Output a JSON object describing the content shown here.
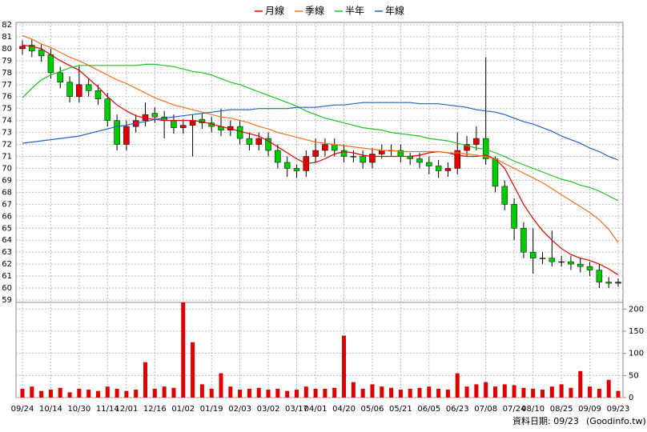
{
  "chart_data": [
    {
      "type": "candlestick",
      "series": [
        {
          "name": "月線",
          "color": "#e00000",
          "values": [
            80.3,
            80.2,
            80.0,
            79.5,
            79.0,
            78.6,
            78.2,
            77.5,
            76.8,
            76.0,
            75.3,
            74.8,
            74.4,
            74.2,
            74.1,
            74.0,
            74.0,
            74.0,
            74.0,
            73.9,
            73.7,
            73.5,
            73.3,
            73.1,
            72.9,
            72.7,
            72.3,
            71.8,
            71.3,
            70.8,
            70.4,
            70.5,
            70.8,
            71.2,
            71.4,
            71.3,
            71.1,
            71.0,
            71.0,
            71.0,
            71.0,
            71.0,
            71.1,
            71.3,
            71.4,
            71.3,
            71.1,
            71.0,
            71.0,
            71.1,
            70.8,
            70.0,
            68.5,
            67.0,
            65.8,
            64.8,
            64.0,
            63.3,
            62.8,
            62.5,
            62.3,
            62.0,
            61.6,
            61.1
          ]
        },
        {
          "name": "季線",
          "color": "#f07020",
          "values": [
            81.1,
            80.8,
            80.4,
            80.1,
            79.7,
            79.3,
            79.0,
            78.6,
            78.2,
            77.8,
            77.4,
            77.1,
            76.7,
            76.3,
            75.9,
            75.6,
            75.3,
            75.1,
            74.9,
            74.7,
            74.5,
            74.3,
            74.2,
            74.0,
            73.8,
            73.5,
            73.3,
            73.0,
            72.8,
            72.6,
            72.4,
            72.2,
            72.1,
            72.0,
            71.9,
            71.8,
            71.7,
            71.6,
            71.5,
            71.5,
            71.4,
            71.4,
            71.4,
            71.4,
            71.4,
            71.3,
            71.3,
            71.2,
            71.1,
            71.0,
            70.8,
            70.4,
            70.0,
            69.6,
            69.2,
            68.8,
            68.3,
            67.8,
            67.3,
            66.8,
            66.3,
            65.7,
            64.9,
            63.8
          ]
        },
        {
          "name": "半年",
          "color": "#20c020",
          "values": [
            75.9,
            76.7,
            77.4,
            77.8,
            78.1,
            78.4,
            78.6,
            78.6,
            78.6,
            78.6,
            78.6,
            78.6,
            78.6,
            78.7,
            78.7,
            78.6,
            78.5,
            78.3,
            78.1,
            78.0,
            77.8,
            77.5,
            77.2,
            77.0,
            76.7,
            76.4,
            76.1,
            75.8,
            75.5,
            75.2,
            74.8,
            74.5,
            74.2,
            74.0,
            73.8,
            73.6,
            73.4,
            73.3,
            73.2,
            73.0,
            72.9,
            72.8,
            72.7,
            72.5,
            72.4,
            72.3,
            72.1,
            71.9,
            71.7,
            71.6,
            71.3,
            71.0,
            70.6,
            70.3,
            70.0,
            69.7,
            69.4,
            69.1,
            68.9,
            68.6,
            68.4,
            68.1,
            67.7,
            67.3
          ]
        },
        {
          "name": "年線",
          "color": "#2060c0",
          "values": [
            72.1,
            72.2,
            72.3,
            72.4,
            72.5,
            72.6,
            72.7,
            72.9,
            73.1,
            73.3,
            73.5,
            73.6,
            73.8,
            73.9,
            74.1,
            74.2,
            74.3,
            74.4,
            74.5,
            74.6,
            74.7,
            74.8,
            74.9,
            74.9,
            74.9,
            75.0,
            75.0,
            75.0,
            75.0,
            75.1,
            75.1,
            75.1,
            75.2,
            75.3,
            75.3,
            75.4,
            75.5,
            75.5,
            75.5,
            75.5,
            75.5,
            75.5,
            75.4,
            75.4,
            75.4,
            75.3,
            75.2,
            75.1,
            74.9,
            74.8,
            74.7,
            74.5,
            74.2,
            73.9,
            73.7,
            73.4,
            73.1,
            72.7,
            72.4,
            72.1,
            71.7,
            71.4,
            71.0,
            70.7
          ]
        }
      ],
      "open": [
        80.0,
        80.3,
        79.9,
        79.5,
        78.0,
        77.2,
        76.0,
        77.0,
        76.5,
        75.8,
        74.0,
        72.0,
        73.5,
        74.0,
        74.6,
        74.3,
        74.0,
        73.4,
        73.6,
        74.1,
        73.8,
        73.5,
        73.2,
        73.5,
        72.5,
        72.0,
        72.5,
        71.5,
        70.5,
        70.0,
        69.8,
        71.0,
        71.5,
        72.0,
        71.5,
        71.0,
        71.0,
        70.5,
        71.2,
        71.5,
        71.5,
        71.0,
        70.8,
        70.5,
        70.2,
        69.8,
        70.0,
        71.5,
        72.0,
        72.5,
        70.8,
        68.5,
        67.0,
        65.0,
        63.0,
        62.5,
        62.5,
        62.2,
        62.2,
        62.0,
        61.8,
        61.5,
        60.5,
        60.4
      ],
      "high": [
        80.7,
        80.8,
        80.4,
        80.0,
        78.5,
        77.7,
        78.6,
        77.5,
        77.0,
        76.3,
        74.5,
        74.0,
        74.5,
        75.5,
        75.1,
        74.8,
        74.5,
        74.1,
        74.5,
        74.6,
        74.3,
        75.0,
        74.0,
        74.0,
        73.0,
        73.0,
        73.0,
        72.0,
        71.0,
        70.3,
        71.5,
        72.5,
        72.5,
        72.5,
        72.0,
        71.5,
        71.5,
        71.7,
        72.0,
        72.0,
        72.0,
        71.3,
        71.3,
        71.0,
        70.7,
        70.5,
        73.0,
        72.7,
        73.5,
        79.3,
        71.0,
        69.0,
        67.5,
        65.5,
        65.0,
        63.0,
        64.8,
        62.7,
        62.7,
        62.5,
        62.2,
        62.0,
        60.9,
        60.8
      ],
      "low": [
        79.5,
        79.3,
        78.9,
        77.5,
        76.7,
        75.5,
        75.5,
        76.0,
        75.3,
        73.5,
        71.5,
        71.5,
        73.0,
        73.5,
        73.8,
        72.5,
        72.9,
        72.9,
        71.0,
        73.3,
        73.0,
        72.7,
        72.7,
        72.0,
        71.5,
        71.5,
        71.0,
        70.0,
        69.3,
        69.2,
        69.3,
        70.5,
        71.0,
        71.0,
        70.5,
        70.5,
        70.0,
        70.0,
        70.8,
        71.0,
        70.5,
        70.3,
        70.0,
        69.5,
        69.2,
        69.3,
        69.5,
        71.0,
        71.5,
        70.3,
        68.0,
        66.5,
        64.0,
        62.5,
        61.2,
        62.0,
        61.8,
        61.8,
        61.5,
        61.3,
        61.0,
        60.0,
        60.0,
        60.1
      ],
      "close": [
        80.2,
        79.8,
        79.4,
        78.0,
        77.2,
        76.0,
        77.0,
        76.5,
        75.8,
        74.0,
        72.0,
        73.5,
        74.0,
        74.5,
        74.3,
        74.0,
        73.4,
        73.6,
        74.0,
        73.8,
        73.5,
        73.2,
        73.5,
        72.5,
        72.0,
        72.5,
        71.5,
        70.5,
        70.0,
        69.8,
        71.0,
        71.5,
        72.0,
        71.5,
        71.0,
        71.0,
        70.5,
        71.2,
        71.5,
        71.5,
        71.0,
        70.8,
        70.5,
        70.2,
        69.8,
        70.0,
        71.5,
        72.0,
        72.5,
        70.8,
        68.5,
        67.0,
        65.0,
        63.0,
        62.5,
        62.5,
        62.2,
        62.2,
        62.0,
        61.8,
        61.5,
        60.5,
        60.4,
        60.5
      ],
      "up_color": "#e00000",
      "down_color": "#00cc00",
      "ylim": [
        58.8,
        82.2
      ],
      "yticks": [
        59,
        60,
        61,
        62,
        63,
        64,
        65,
        66,
        67,
        68,
        69,
        70,
        71,
        72,
        73,
        74,
        75,
        76,
        77,
        78,
        79,
        80,
        81,
        82
      ],
      "grid": true
    },
    {
      "type": "bar",
      "categories": [
        "09/24",
        null,
        null,
        "10/14",
        null,
        null,
        "10/30",
        null,
        null,
        "11/14",
        null,
        "12/01",
        null,
        null,
        "12/16",
        null,
        null,
        "01/02",
        null,
        null,
        "01/19",
        null,
        null,
        "02/03",
        null,
        null,
        "03/02",
        null,
        null,
        "03/17",
        null,
        "04/01",
        null,
        null,
        "04/20",
        null,
        null,
        "05/06",
        null,
        null,
        "05/21",
        null,
        null,
        "06/05",
        null,
        null,
        "06/23",
        null,
        null,
        "07/08",
        null,
        null,
        "07/24",
        null,
        "08/10",
        null,
        null,
        "08/25",
        null,
        null,
        "09/09",
        null,
        null,
        "09/23"
      ],
      "values": [
        20,
        25,
        15,
        18,
        22,
        12,
        20,
        18,
        15,
        25,
        20,
        15,
        18,
        80,
        20,
        25,
        22,
        215,
        125,
        30,
        20,
        55,
        25,
        18,
        20,
        22,
        18,
        20,
        15,
        18,
        25,
        20,
        20,
        22,
        140,
        35,
        20,
        30,
        25,
        22,
        18,
        20,
        22,
        25,
        20,
        18,
        55,
        25,
        30,
        35,
        25,
        30,
        28,
        22,
        20,
        18,
        25,
        30,
        22,
        60,
        25,
        20,
        40,
        15
      ],
      "color": "#e00000",
      "ylim": [
        0,
        215
      ],
      "yticks": [
        0,
        50,
        100,
        150,
        200
      ],
      "grid": true,
      "note": "資料日期: 09/23",
      "source": "(Goodinfo.tw)"
    }
  ]
}
